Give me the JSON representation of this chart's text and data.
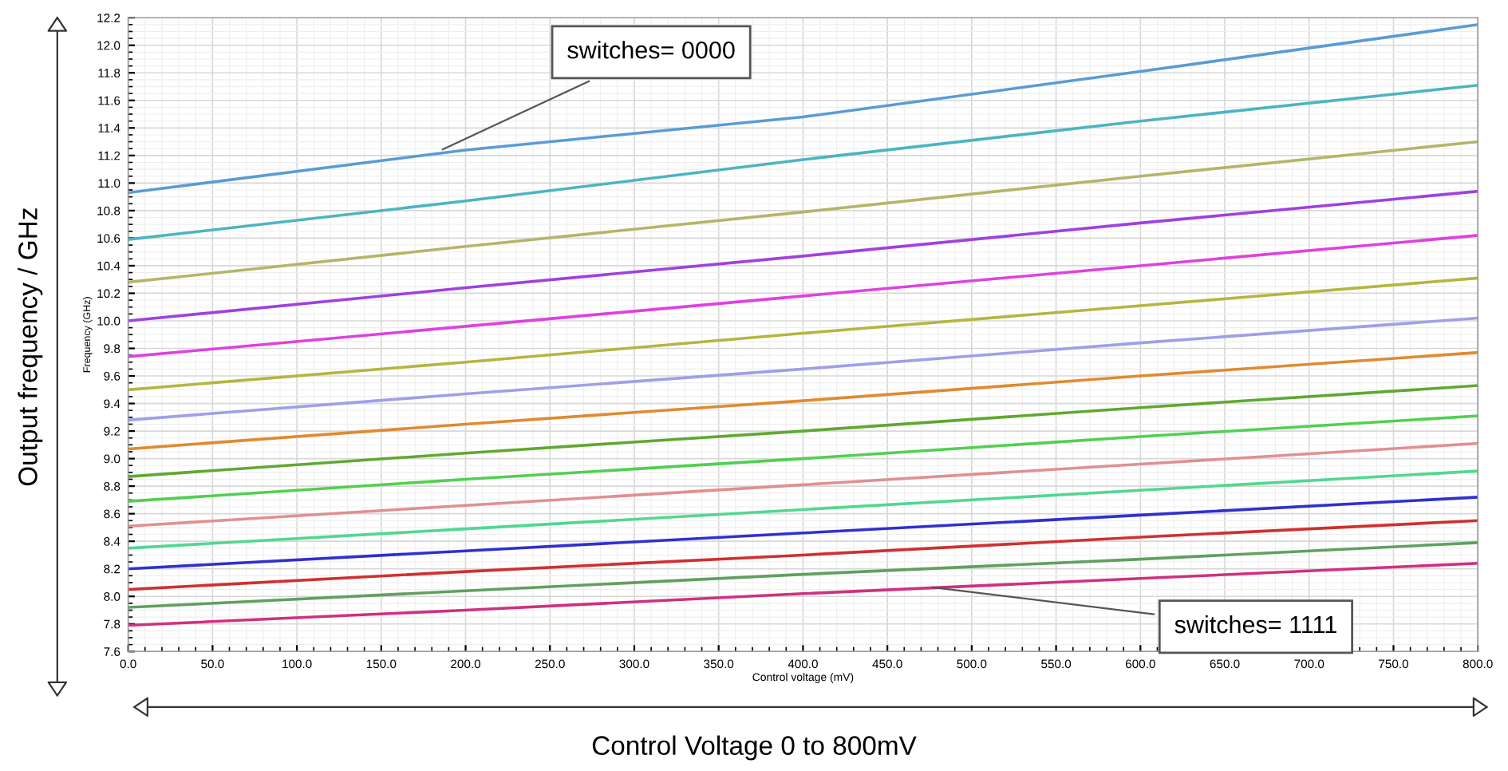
{
  "chart_data": {
    "type": "line",
    "xlabel": "Control voltage (mV)",
    "ylabel": "Frequency (GHz)",
    "x": [
      0,
      200,
      400,
      600,
      800
    ],
    "series": [
      {
        "color": "#5b9bd5",
        "values": [
          10.93,
          11.24,
          11.48,
          11.81,
          12.15
        ]
      },
      {
        "color": "#4bb5c1",
        "values": [
          10.59,
          10.87,
          11.17,
          11.45,
          11.71
        ]
      },
      {
        "color": "#b5b56a",
        "values": [
          10.28,
          10.54,
          10.79,
          11.05,
          11.3
        ]
      },
      {
        "color": "#a040e0",
        "values": [
          10.0,
          10.24,
          10.47,
          10.71,
          10.94
        ]
      },
      {
        "color": "#e040e0",
        "values": [
          9.74,
          9.96,
          10.18,
          10.4,
          10.62
        ]
      },
      {
        "color": "#b5b540",
        "values": [
          9.5,
          9.7,
          9.91,
          10.11,
          10.31
        ]
      },
      {
        "color": "#9f9fe8",
        "values": [
          9.28,
          9.47,
          9.65,
          9.84,
          10.02
        ]
      },
      {
        "color": "#e08a30",
        "values": [
          9.07,
          9.25,
          9.42,
          9.6,
          9.77
        ]
      },
      {
        "color": "#60a830",
        "values": [
          8.87,
          9.04,
          9.2,
          9.37,
          9.53
        ]
      },
      {
        "color": "#50d050",
        "values": [
          8.69,
          8.85,
          9.0,
          9.16,
          9.31
        ]
      },
      {
        "color": "#e09090",
        "values": [
          8.51,
          8.66,
          8.81,
          8.96,
          9.11
        ]
      },
      {
        "color": "#50d890",
        "values": [
          8.35,
          8.49,
          8.63,
          8.77,
          8.91
        ]
      },
      {
        "color": "#3030d0",
        "values": [
          8.2,
          8.33,
          8.46,
          8.59,
          8.72
        ]
      },
      {
        "color": "#d03030",
        "values": [
          8.05,
          8.18,
          8.3,
          8.43,
          8.55
        ]
      },
      {
        "color": "#60a060",
        "values": [
          7.92,
          8.04,
          8.16,
          8.27,
          8.39
        ]
      },
      {
        "color": "#d03080",
        "values": [
          7.79,
          7.9,
          8.02,
          8.13,
          8.24
        ]
      }
    ],
    "xlim": [
      0,
      800
    ],
    "xticks": [
      {
        "value": 0,
        "label": "0.0"
      },
      {
        "value": 50,
        "label": "50.0"
      },
      {
        "value": 100,
        "label": "100.0"
      },
      {
        "value": 150,
        "label": "150.0"
      },
      {
        "value": 200,
        "label": "200.0"
      },
      {
        "value": 250,
        "label": "250.0"
      },
      {
        "value": 300,
        "label": "300.0"
      },
      {
        "value": 350,
        "label": "350.0"
      },
      {
        "value": 400,
        "label": "400.0"
      },
      {
        "value": 450,
        "label": "450.0"
      },
      {
        "value": 500,
        "label": "500.0"
      },
      {
        "value": 550,
        "label": "550.0"
      },
      {
        "value": 600,
        "label": "600.0"
      },
      {
        "value": 650,
        "label": "650.0"
      },
      {
        "value": 700,
        "label": "700.0"
      },
      {
        "value": 750,
        "label": "750.0"
      },
      {
        "value": 800,
        "label": "800.0"
      }
    ],
    "ylim": [
      7.6,
      12.2
    ],
    "yticks": [
      7.6,
      7.8,
      {
        "value": 8,
        "label": "8.0"
      },
      8.2,
      8.4,
      8.6,
      8.8,
      {
        "value": 9,
        "label": "9.0"
      },
      9.2,
      9.4,
      9.6,
      9.8,
      {
        "value": 10,
        "label": "10.0"
      },
      10.2,
      10.4,
      10.6,
      10.8,
      {
        "value": 11,
        "label": "11.0"
      },
      11.2,
      11.4,
      11.6,
      11.8,
      {
        "value": 12,
        "label": "12.0"
      },
      12.2
    ],
    "grid": true,
    "marker": "none",
    "line_style": "solid",
    "annotations": [
      "Control Voltage 0 to 800mV",
      "Output frequency / GHz",
      {
        "text": "switches= 0000",
        "x": 184,
        "y": 11.23
      },
      {
        "text": "switches= 1111",
        "x": 474,
        "y": 8.07
      }
    ]
  }
}
